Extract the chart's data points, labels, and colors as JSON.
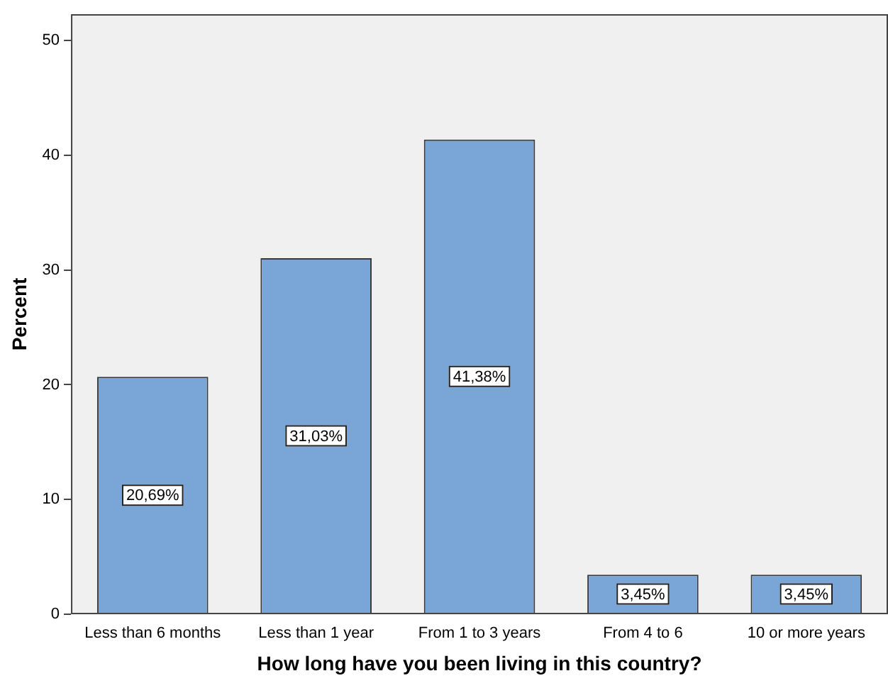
{
  "chart_data": {
    "type": "bar",
    "xlabel": "How long have you been living in this country?",
    "ylabel": "Percent",
    "categories": [
      "Less than 6 months",
      "Less than 1 year",
      "From 1 to 3 years",
      "From 4 to 6",
      "10 or more years"
    ],
    "values": [
      20.69,
      31.03,
      41.38,
      3.45,
      3.45
    ],
    "value_labels": [
      "20,69%",
      "31,03%",
      "41,38%",
      "3,45%",
      "3,45%"
    ],
    "color": "#79a6d7",
    "ylim": [
      0,
      52.3
    ],
    "yticks": [
      0,
      10,
      20,
      30,
      40,
      50
    ],
    "grid": false,
    "legend": false
  }
}
